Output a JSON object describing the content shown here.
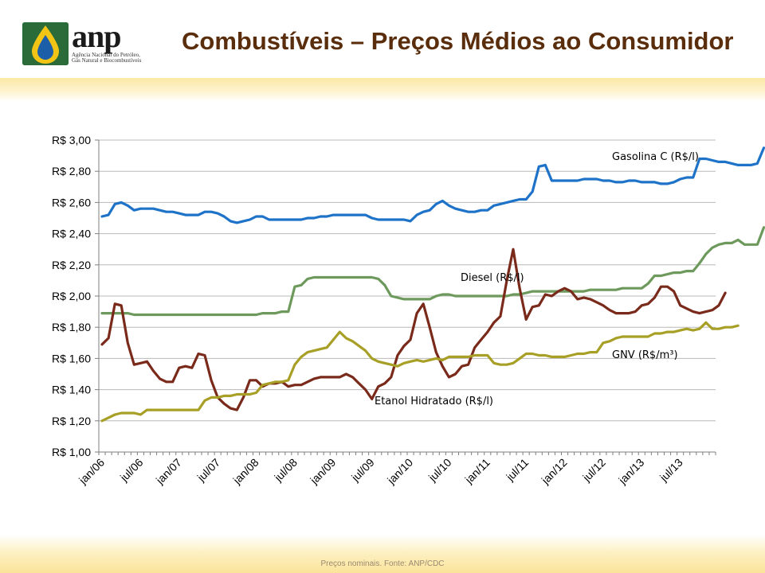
{
  "header": {
    "title": "Combustíveis – Preços Médios ao Consumidor",
    "logo_text": "anp",
    "logo_subtitle": "Agência Nacional do Petróleo, Gás Natural e Biocombustíveis"
  },
  "footer": {
    "note": "Preços nominais.  Fonte:  ANP/CDC"
  },
  "colors": {
    "title": "#5a2d0c",
    "gasolina": "#1e73c8",
    "diesel": "#6d9a5c",
    "etanol": "#7a2a1a",
    "gnv": "#a8a026"
  },
  "chart_data": {
    "type": "line",
    "x_tick_labels": [
      "jan/06",
      "jul/06",
      "jan/07",
      "jul/07",
      "jan/08",
      "jul/08",
      "jan/09",
      "jul/09",
      "jan/10",
      "jul/10",
      "jan/11",
      "jul/11",
      "jan/12",
      "jul/12",
      "jan/13",
      "jul/13"
    ],
    "y_tick_labels": [
      "R$ 1,00",
      "R$ 1,20",
      "R$ 1,40",
      "R$ 1,60",
      "R$ 1,80",
      "R$ 2,00",
      "R$ 2,20",
      "R$ 2,40",
      "R$ 2,60",
      "R$ 2,80",
      "R$ 3,00"
    ],
    "ylim": [
      1.0,
      3.0
    ],
    "x_range_months": [
      "jan/06",
      "dez/13"
    ],
    "grid": "horizontal",
    "series": [
      {
        "name": "Gasolina C (R$/l)",
        "color": "#1e73c8",
        "values": [
          2.51,
          2.52,
          2.59,
          2.6,
          2.58,
          2.55,
          2.56,
          2.56,
          2.56,
          2.55,
          2.54,
          2.54,
          2.53,
          2.52,
          2.52,
          2.52,
          2.54,
          2.54,
          2.53,
          2.51,
          2.48,
          2.47,
          2.48,
          2.49,
          2.51,
          2.51,
          2.49,
          2.49,
          2.49,
          2.49,
          2.49,
          2.49,
          2.5,
          2.5,
          2.51,
          2.51,
          2.52,
          2.52,
          2.52,
          2.52,
          2.52,
          2.52,
          2.5,
          2.49,
          2.49,
          2.49,
          2.49,
          2.49,
          2.48,
          2.52,
          2.54,
          2.55,
          2.59,
          2.61,
          2.58,
          2.56,
          2.55,
          2.54,
          2.54,
          2.55,
          2.55,
          2.58,
          2.59,
          2.6,
          2.61,
          2.62,
          2.62,
          2.67,
          2.83,
          2.84,
          2.74,
          2.74,
          2.74,
          2.74,
          2.74,
          2.75,
          2.75,
          2.75,
          2.74,
          2.74,
          2.73,
          2.73,
          2.74,
          2.74,
          2.73,
          2.73,
          2.73,
          2.72,
          2.72,
          2.73,
          2.75,
          2.76,
          2.76,
          2.88,
          2.88,
          2.87,
          2.86,
          2.86,
          2.85,
          2.84,
          2.84,
          2.84,
          2.85,
          2.95
        ]
      },
      {
        "name": "Diesel (R$/l)",
        "color": "#6d9a5c",
        "values": [
          1.89,
          1.89,
          1.89,
          1.89,
          1.89,
          1.88,
          1.88,
          1.88,
          1.88,
          1.88,
          1.88,
          1.88,
          1.88,
          1.88,
          1.88,
          1.88,
          1.88,
          1.88,
          1.88,
          1.88,
          1.88,
          1.88,
          1.88,
          1.88,
          1.88,
          1.89,
          1.89,
          1.89,
          1.9,
          1.9,
          2.06,
          2.07,
          2.11,
          2.12,
          2.12,
          2.12,
          2.12,
          2.12,
          2.12,
          2.12,
          2.12,
          2.12,
          2.12,
          2.11,
          2.07,
          2.0,
          1.99,
          1.98,
          1.98,
          1.98,
          1.98,
          1.98,
          2.0,
          2.01,
          2.01,
          2.0,
          2.0,
          2.0,
          2.0,
          2.0,
          2.0,
          2.0,
          2.0,
          2.0,
          2.01,
          2.01,
          2.02,
          2.03,
          2.03,
          2.03,
          2.03,
          2.03,
          2.03,
          2.03,
          2.03,
          2.03,
          2.04,
          2.04,
          2.04,
          2.04,
          2.04,
          2.05,
          2.05,
          2.05,
          2.05,
          2.08,
          2.13,
          2.13,
          2.14,
          2.15,
          2.15,
          2.16,
          2.16,
          2.21,
          2.27,
          2.31,
          2.33,
          2.34,
          2.34,
          2.36,
          2.33,
          2.33,
          2.33,
          2.44
        ]
      },
      {
        "name": "Etanol Hidratado (R$/l)",
        "color": "#7a2a1a",
        "values": [
          1.69,
          1.73,
          1.95,
          1.94,
          1.7,
          1.56,
          1.57,
          1.58,
          1.52,
          1.47,
          1.45,
          1.45,
          1.54,
          1.55,
          1.54,
          1.63,
          1.62,
          1.46,
          1.35,
          1.31,
          1.28,
          1.27,
          1.35,
          1.46,
          1.46,
          1.42,
          1.44,
          1.44,
          1.45,
          1.42,
          1.43,
          1.43,
          1.45,
          1.47,
          1.48,
          1.48,
          1.48,
          1.48,
          1.5,
          1.48,
          1.44,
          1.4,
          1.34,
          1.42,
          1.44,
          1.48,
          1.62,
          1.68,
          1.72,
          1.89,
          1.95,
          1.8,
          1.64,
          1.55,
          1.48,
          1.5,
          1.55,
          1.56,
          1.67,
          1.72,
          1.77,
          1.83,
          1.87,
          2.1,
          2.3,
          2.05,
          1.85,
          1.93,
          1.94,
          2.01,
          2.0,
          2.03,
          2.05,
          2.03,
          1.98,
          1.99,
          1.98,
          1.96,
          1.94,
          1.91,
          1.89,
          1.89,
          1.89,
          1.9,
          1.94,
          1.95,
          1.99,
          2.06,
          2.06,
          2.03,
          1.94,
          1.92,
          1.9,
          1.89,
          1.9,
          1.91,
          1.94,
          2.02
        ]
      },
      {
        "name": "GNV (R$/m³)",
        "color": "#a8a026",
        "values": [
          1.2,
          1.22,
          1.24,
          1.25,
          1.25,
          1.25,
          1.24,
          1.27,
          1.27,
          1.27,
          1.27,
          1.27,
          1.27,
          1.27,
          1.27,
          1.27,
          1.33,
          1.35,
          1.35,
          1.36,
          1.36,
          1.37,
          1.37,
          1.37,
          1.38,
          1.43,
          1.44,
          1.45,
          1.45,
          1.46,
          1.56,
          1.61,
          1.64,
          1.65,
          1.66,
          1.67,
          1.72,
          1.77,
          1.73,
          1.71,
          1.68,
          1.65,
          1.6,
          1.58,
          1.57,
          1.56,
          1.55,
          1.57,
          1.58,
          1.59,
          1.58,
          1.59,
          1.6,
          1.59,
          1.61,
          1.61,
          1.61,
          1.61,
          1.62,
          1.62,
          1.62,
          1.57,
          1.56,
          1.56,
          1.57,
          1.6,
          1.63,
          1.63,
          1.62,
          1.62,
          1.61,
          1.61,
          1.61,
          1.62,
          1.63,
          1.63,
          1.64,
          1.64,
          1.7,
          1.71,
          1.73,
          1.74,
          1.74,
          1.74,
          1.74,
          1.74,
          1.76,
          1.76,
          1.77,
          1.77,
          1.78,
          1.79,
          1.78,
          1.79,
          1.83,
          1.79,
          1.79,
          1.8,
          1.8,
          1.81
        ]
      }
    ],
    "annotations": [
      {
        "text": "Gasolina C (R$/l)",
        "series": 0,
        "at": "dez/13",
        "value": 2.88
      },
      {
        "text": "Diesel (R$/l)",
        "series": 1,
        "at": "mai/11",
        "value": 2.11
      },
      {
        "text": "Etanol Hidratado (R$/l)",
        "series": 2,
        "at": "mar/10",
        "value": 1.33
      },
      {
        "text": "GNV (R$/m³)",
        "series": 3,
        "at": "set/13",
        "value": 1.62
      }
    ]
  }
}
